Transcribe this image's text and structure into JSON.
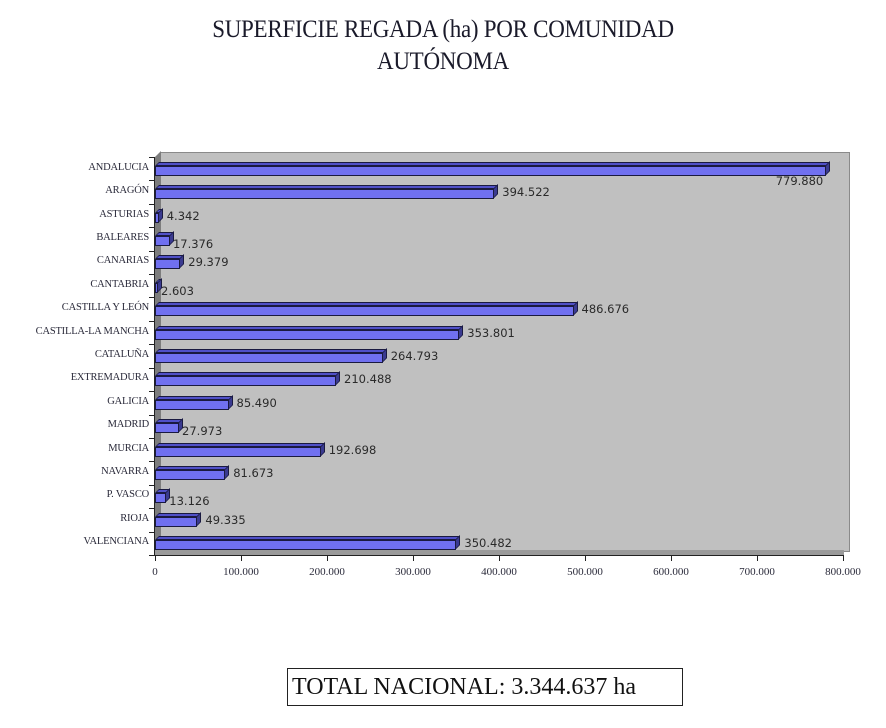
{
  "title": {
    "line1": "SUPERFICIE REGADA (ha) POR COMUNIDAD",
    "line2": "AUTÓNOMA"
  },
  "total": {
    "label": "TOTAL NACIONAL: 3.344.637 ha"
  },
  "chart_data": {
    "type": "bar",
    "orientation": "horizontal",
    "style": "3d",
    "title": "SUPERFICIE REGADA (ha) POR COMUNIDAD AUTÓNOMA",
    "xlabel": "",
    "ylabel": "",
    "xlim": [
      0,
      800000
    ],
    "grid": false,
    "legend": null,
    "bar_color": "#7070f0",
    "plot_background": "#c0c0c0",
    "categories": [
      "ANDALUCIA",
      "ARAGÓN",
      "ASTURIAS",
      "BALEARES",
      "CANARIAS",
      "CANTABRIA",
      "CASTILLA Y LEÓN",
      "CASTILLA-LA MANCHA",
      "CATALUÑA",
      "EXTREMADURA",
      "GALICIA",
      "MADRID",
      "MURCIA",
      "NAVARRA",
      "P. VASCO",
      "RIOJA",
      "VALENCIANA"
    ],
    "values": [
      779880,
      394522,
      4342,
      17376,
      29379,
      2603,
      486676,
      353801,
      264793,
      210488,
      85490,
      27973,
      192698,
      81673,
      13126,
      49335,
      350482
    ],
    "value_labels": [
      "779.880",
      "394.522",
      "4.342",
      "17.376",
      "29.379",
      "2.603",
      "486.676",
      "353.801",
      "264.793",
      "210.488",
      "85.490",
      "27.973",
      "192.698",
      "81.673",
      "13.126",
      "49.335",
      "350.482"
    ],
    "x_tick_labels": [
      "0",
      "100.000",
      "200.000",
      "300.000",
      "400.000",
      "500.000",
      "600.000",
      "700.000",
      "800.000"
    ],
    "x_tick_values": [
      0,
      100000,
      200000,
      300000,
      400000,
      500000,
      600000,
      700000,
      800000
    ],
    "annotations": [
      "TOTAL NACIONAL: 3.344.637 ha"
    ]
  }
}
